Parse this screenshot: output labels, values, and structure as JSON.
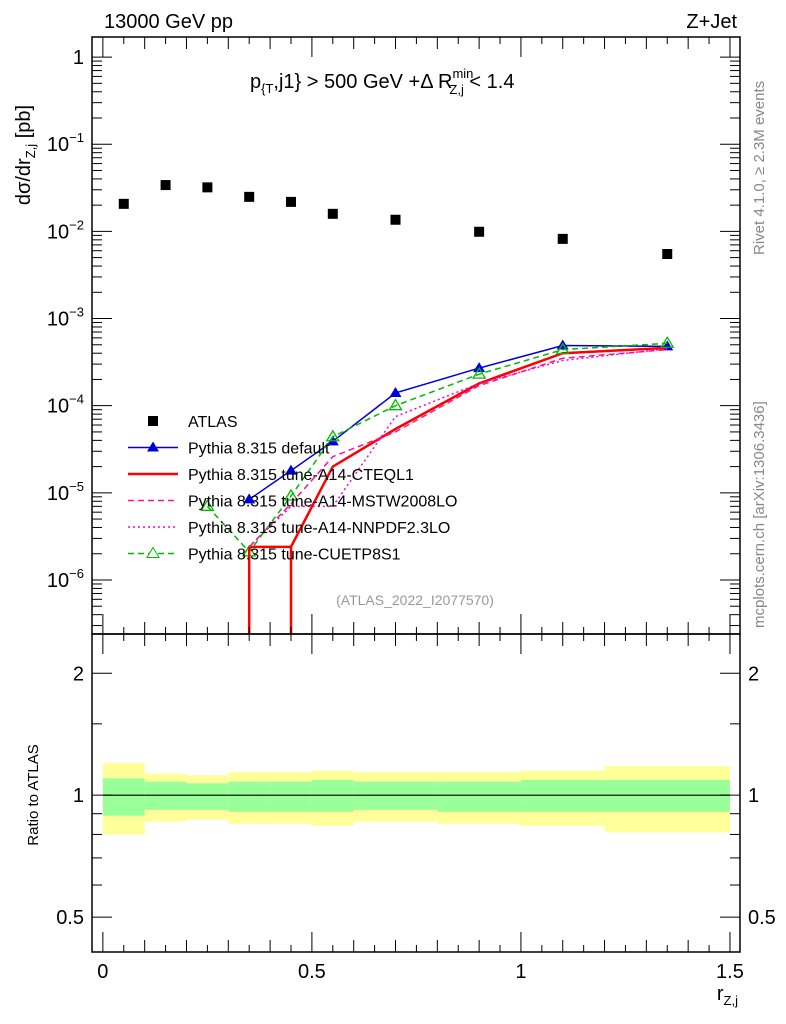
{
  "header": {
    "left": "13000 GeV pp",
    "right": "Z+Jet"
  },
  "side": {
    "rivet": "Rivet 4.1.0, ≥ 2.3M events",
    "mcplots": "mcplots.cern.ch [arXiv:1306.3436]"
  },
  "watermark": "(ATLAS_2022_I2077570)",
  "chart_data": [
    {
      "type": "line",
      "panel": "main",
      "title_parts": {
        "p": "p",
        "sub1": "{T",
        "mid": ",j1} > 500 GeV +Δ R",
        "sup": "min",
        "sub2": "Z,j",
        "end": " < 1.4"
      },
      "ylabel": {
        "main": "dσ/dr",
        "sub": "Z,j",
        "unit": " [pb]"
      },
      "yscale": "log",
      "ylim": [
        2.4e-07,
        1.7
      ],
      "xlim": [
        -0.026,
        1.524
      ],
      "yticks": [
        {
          "v": 1,
          "m": "1",
          "e": ""
        },
        {
          "v": 0.1,
          "m": "10",
          "e": "−1"
        },
        {
          "v": 0.01,
          "m": "10",
          "e": "−2"
        },
        {
          "v": 0.001,
          "m": "10",
          "e": "−3"
        },
        {
          "v": 0.0001,
          "m": "10",
          "e": "−4"
        },
        {
          "v": 1e-05,
          "m": "10",
          "e": "−5"
        },
        {
          "v": 1e-06,
          "m": "10",
          "e": "−6"
        }
      ],
      "bins": [
        [
          0,
          0.1
        ],
        [
          0.1,
          0.2
        ],
        [
          0.2,
          0.3
        ],
        [
          0.3,
          0.4
        ],
        [
          0.4,
          0.5
        ],
        [
          0.5,
          0.6
        ],
        [
          0.6,
          0.8
        ],
        [
          0.8,
          1.0
        ],
        [
          1.0,
          1.2
        ],
        [
          1.2,
          1.5
        ]
      ],
      "x": [
        0.05,
        0.15,
        0.25,
        0.35,
        0.45,
        0.55,
        0.7,
        0.9,
        1.1,
        1.35
      ],
      "legend_position": "center-left",
      "series": [
        {
          "name": "ATLAS",
          "color": "#000000",
          "style": "data",
          "marker": "square",
          "values": [
            0.0207,
            0.034,
            0.032,
            0.0249,
            0.0218,
            0.0159,
            0.0136,
            0.0099,
            0.0082,
            0.0055
          ]
        },
        {
          "name": "Pythia 8.315 default",
          "color": "#0000dd",
          "style": "solid",
          "marker": "triangle-filled",
          "values": [
            null,
            null,
            null,
            8.4e-06,
            1.8e-05,
            3.9e-05,
            0.00014,
            0.00027,
            0.00049,
            0.00048
          ]
        },
        {
          "name": "Pythia 8.315 tune-A14-CTEQL1",
          "color": "#ff0000",
          "style": "thick",
          "marker": "none",
          "values": [
            null,
            null,
            null,
            2.4e-06,
            2.4e-06,
            2e-05,
            5.4e-05,
            0.00018,
            0.0004,
            0.00046
          ]
        },
        {
          "name": "Pythia 8.315 tune-A14-MSTW2008LO",
          "color": "#ff1493",
          "style": "dashed",
          "marker": "none",
          "values": [
            null,
            null,
            null,
            2.4e-06,
            7.5e-06,
            2.6e-05,
            5e-05,
            0.00017,
            0.00035,
            0.00044
          ]
        },
        {
          "name": "Pythia 8.315 tune-A14-NNPDF2.3LO",
          "color": "#ff00cc",
          "style": "dotted",
          "marker": "none",
          "values": [
            null,
            null,
            null,
            2.4e-06,
            7e-06,
            7e-06,
            7.5e-05,
            0.00018,
            0.00033,
            0.00045
          ]
        },
        {
          "name": "Pythia 8.315 tune-CUETP8S1",
          "color": "#00bb00",
          "style": "dashed",
          "marker": "triangle-open",
          "values": [
            null,
            null,
            7e-06,
            2.1e-06,
            9.2e-06,
            4.4e-05,
            0.0001,
            0.00023,
            0.00044,
            0.00052
          ]
        }
      ]
    },
    {
      "type": "area",
      "panel": "ratio",
      "ylabel": "Ratio to ATLAS",
      "xlabel": {
        "main": "r",
        "sub": "Z,j"
      },
      "yscale": "log",
      "ylim": [
        0.41,
        2.5
      ],
      "yticks": [
        {
          "v": 2,
          "l": "2"
        },
        {
          "v": 1,
          "l": "1"
        },
        {
          "v": 0.5,
          "l": "0.5"
        }
      ],
      "xticks": [
        {
          "v": 0,
          "l": "0"
        },
        {
          "v": 0.5,
          "l": "0.5"
        },
        {
          "v": 1,
          "l": "1"
        },
        {
          "v": 1.5,
          "l": "1.5"
        }
      ],
      "band_colors": {
        "total": "#ffff99",
        "stat": "#99ff99"
      },
      "total_band": [
        [
          0.8,
          1.2
        ],
        [
          0.86,
          1.13
        ],
        [
          0.87,
          1.12
        ],
        [
          0.85,
          1.14
        ],
        [
          0.85,
          1.14
        ],
        [
          0.84,
          1.15
        ],
        [
          0.86,
          1.14
        ],
        [
          0.85,
          1.14
        ],
        [
          0.84,
          1.15
        ],
        [
          0.81,
          1.18
        ]
      ],
      "stat_band": [
        [
          0.89,
          1.1
        ],
        [
          0.92,
          1.08
        ],
        [
          0.92,
          1.07
        ],
        [
          0.91,
          1.08
        ],
        [
          0.91,
          1.08
        ],
        [
          0.91,
          1.09
        ],
        [
          0.92,
          1.08
        ],
        [
          0.91,
          1.08
        ],
        [
          0.91,
          1.09
        ],
        [
          0.91,
          1.09
        ]
      ]
    }
  ]
}
